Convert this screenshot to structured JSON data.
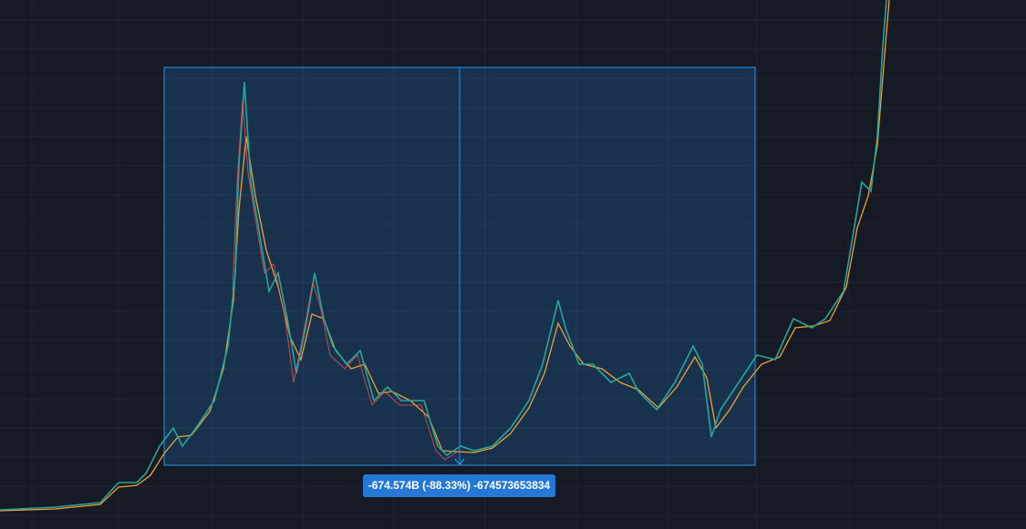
{
  "measure": {
    "label": "-674.574B (-88.33%) -674573653834"
  }
}
